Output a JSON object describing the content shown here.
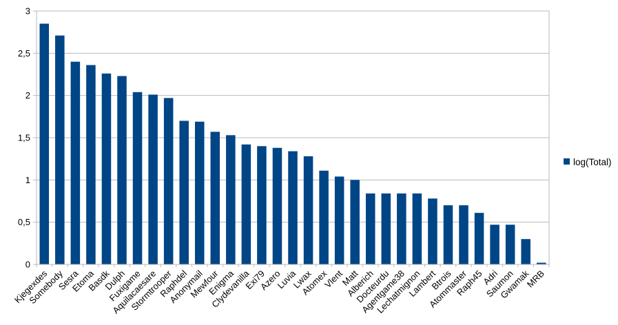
{
  "chart_data": {
    "type": "bar",
    "title": "",
    "categories": [
      "Kjegexdes",
      "Somebody",
      "Sesra",
      "Etoma",
      "Basdk",
      "Dulph",
      "Fuxigame",
      "Aquilacaesare",
      "Stormtrooper",
      "Raphdel",
      "Anonymail",
      "Mewfour",
      "Enigma",
      "Clydevanilla",
      "Exi79",
      "Azero",
      "Luvia",
      "Lwax",
      "Atomex",
      "Vlent",
      "Matt",
      "Alberich",
      "Docteurdu",
      "Agentgame38",
      "Lechatmignon",
      "Lambert",
      "Btrois",
      "Atommaster",
      "Raph45",
      "Adri",
      "Saumon",
      "Gwamak",
      "MRB"
    ],
    "series": [
      {
        "name": "log(Total)",
        "values": [
          2.85,
          2.71,
          2.4,
          2.36,
          2.26,
          2.23,
          2.04,
          2.01,
          1.97,
          1.7,
          1.69,
          1.57,
          1.53,
          1.42,
          1.4,
          1.38,
          1.34,
          1.28,
          1.11,
          1.04,
          1.0,
          0.84,
          0.84,
          0.84,
          0.84,
          0.78,
          0.7,
          0.7,
          0.61,
          0.47,
          0.47,
          0.3,
          0.02
        ]
      }
    ],
    "xlabel": "",
    "ylabel": "",
    "ylim": [
      0,
      3
    ],
    "ytick_step": 0.5,
    "ytick_labels": [
      "0",
      "0,5",
      "1",
      "1,5",
      "2",
      "2,5",
      "3"
    ],
    "grid": "horizontal",
    "legend_position": "right-middle",
    "x_label_rotation_deg": -45
  },
  "legend": {
    "label": "log(Total)"
  },
  "colors": {
    "bar": "#004586",
    "grid": "#b9b9b9",
    "axis": "#b9b9b9",
    "text": "#000000",
    "background": "#ffffff"
  }
}
